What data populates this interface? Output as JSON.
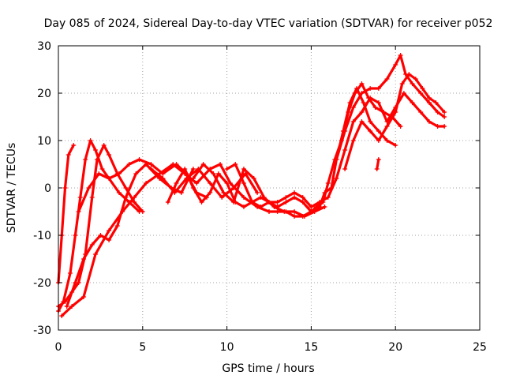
{
  "chart_data": {
    "type": "scatter",
    "title": "Day 085 of 2024, Sidereal Day-to-day VTEC variation (SDTVAR) for receiver p052",
    "xlabel": "GPS time / hours",
    "ylabel": "SDTVAR / TECUs",
    "xlim": [
      0,
      25
    ],
    "ylim": [
      -30,
      30
    ],
    "xticks": [
      "0",
      "5",
      "10",
      "15",
      "20",
      "25"
    ],
    "yticks": [
      "-30",
      "-20",
      "-10",
      "0",
      "10",
      "20",
      "30"
    ],
    "grid": true,
    "marker": "+",
    "color": "#ff0000",
    "series": [
      {
        "name": "s1",
        "x": [
          0,
          0.2,
          0.4,
          0.6,
          0.9
        ],
        "y": [
          -20,
          -10,
          0,
          7,
          9
        ]
      },
      {
        "name": "s2",
        "x": [
          0,
          0.3,
          0.7,
          1.0,
          1.3,
          1.6,
          1.9,
          2.2,
          2.6,
          3.0,
          3.6,
          4.2,
          4.8,
          5.5,
          6.2,
          7.0,
          7.6,
          8.2,
          8.8
        ],
        "y": [
          -26,
          -24,
          -18,
          -10,
          -2,
          6,
          10,
          8,
          4,
          2,
          3,
          5,
          6,
          5,
          3,
          5,
          3,
          -1,
          -2
        ]
      },
      {
        "name": "s3",
        "x": [
          0,
          0.4,
          0.8,
          1.2,
          1.6,
          2.0,
          2.3,
          2.7,
          3.0,
          3.5,
          4.0,
          4.5,
          5.0
        ],
        "y": [
          -25,
          -24,
          -22,
          -20,
          -14,
          -2,
          6,
          9,
          7,
          3,
          0,
          -3,
          -5
        ]
      },
      {
        "name": "s4",
        "x": [
          0.2,
          0.8,
          1.5,
          2.2,
          3.0,
          3.8,
          4.5,
          5.2,
          6.0,
          6.8,
          7.5,
          8.2,
          9.0,
          9.6,
          10.2,
          11.0,
          11.8,
          12.5
        ],
        "y": [
          -27,
          -25,
          -23,
          -14,
          -9,
          -5,
          -2,
          1,
          3,
          5,
          3,
          1,
          4,
          5,
          1,
          -2,
          -4,
          -5
        ]
      },
      {
        "name": "s5",
        "x": [
          0.5,
          1.0,
          1.5,
          2.0,
          2.5,
          3.0,
          3.5,
          4.0,
          4.6,
          5.2,
          6.0,
          6.7,
          7.3,
          8.0
        ],
        "y": [
          -25,
          -20,
          -15,
          -12,
          -10,
          -11,
          -8,
          -2,
          3,
          5,
          2,
          0,
          -1,
          4
        ]
      },
      {
        "name": "s6",
        "x": [
          6.5,
          7.0,
          7.5,
          8.0,
          8.5,
          9.0,
          9.5,
          10.0,
          10.5,
          11.0,
          11.5,
          12.0,
          12.5,
          13.0,
          13.5,
          14.0,
          14.5,
          15.0
        ],
        "y": [
          -3,
          1,
          4,
          0,
          -3,
          -1,
          3,
          1,
          -3,
          -4,
          -3,
          -2,
          -3,
          -4,
          -3,
          -2,
          -3,
          -5
        ]
      },
      {
        "name": "s7",
        "x": [
          8.0,
          8.6,
          9.2,
          9.8,
          10.4,
          11.0,
          11.6,
          12.2,
          12.8,
          13.4,
          14.0,
          14.6,
          15.2,
          15.8
        ],
        "y": [
          2,
          5,
          3,
          -1,
          -3,
          4,
          2,
          -2,
          -4,
          -5,
          -5,
          -6,
          -5,
          -4
        ]
      },
      {
        "name": "s8",
        "x": [
          10.0,
          10.5,
          11.0,
          11.5,
          12.0,
          12.5,
          13.0,
          13.5,
          14.0,
          14.5,
          15.0,
          15.5
        ],
        "y": [
          4,
          5,
          1,
          -3,
          -4,
          -3,
          -3,
          -2,
          -1,
          -2,
          -4,
          -3
        ]
      },
      {
        "name": "s9",
        "x": [
          12.5,
          13.0,
          13.5,
          14.0,
          14.5,
          15.0,
          15.5,
          15.8,
          16.2,
          16.5,
          16.9,
          17.3,
          17.7,
          18.1,
          18.5,
          19.0,
          19.5,
          20.0
        ],
        "y": [
          -5,
          -5,
          -5,
          -6,
          -6,
          -5,
          -4,
          -1,
          0,
          6,
          12,
          18,
          21,
          18,
          14,
          12,
          10,
          9
        ]
      },
      {
        "name": "s10",
        "x": [
          15.0,
          15.3,
          15.7,
          16.0,
          16.4,
          16.8,
          17.2,
          17.6,
          18.0,
          18.4,
          18.8,
          19.3,
          19.8,
          20.3
        ],
        "y": [
          -5,
          -4,
          -3,
          1,
          6,
          10,
          16,
          20,
          22,
          19,
          17,
          16,
          15,
          13
        ]
      },
      {
        "name": "s11",
        "x": [
          15.5,
          16.0,
          16.5,
          17.0,
          17.5,
          18.0,
          18.5,
          19.0,
          19.5,
          20.0,
          20.5,
          21.0,
          21.5,
          22.0,
          22.5,
          22.9
        ],
        "y": [
          -3,
          -2,
          2,
          8,
          14,
          16,
          19,
          18,
          14,
          17,
          20,
          18,
          16,
          14,
          13,
          13
        ]
      },
      {
        "name": "s12",
        "x": [
          16.5,
          17.0,
          17.5,
          18.0,
          18.5,
          19.0,
          19.5,
          20.0,
          20.3,
          20.6,
          21.0,
          21.5,
          22.0,
          22.5,
          22.9
        ],
        "y": [
          6,
          12,
          17,
          20,
          21,
          21,
          23,
          26,
          28,
          24,
          22,
          20,
          18,
          16,
          15
        ]
      },
      {
        "name": "s13",
        "x": [
          17.0,
          17.5,
          18.0,
          18.5,
          19.0,
          19.5,
          20.0,
          20.4,
          20.8,
          21.2,
          21.6,
          22.0,
          22.4,
          22.9
        ],
        "y": [
          4,
          10,
          14,
          12,
          10,
          13,
          16,
          22,
          24,
          23,
          21,
          19,
          18,
          16
        ]
      },
      {
        "name": "s14",
        "x": [
          18.9,
          19.0
        ],
        "y": [
          4,
          6
        ]
      },
      {
        "name": "s15",
        "x": [
          1.2,
          1.8,
          2.4,
          3.0,
          3.6,
          4.2,
          4.8
        ],
        "y": [
          -5,
          0,
          3,
          2,
          -1,
          -3,
          -5
        ]
      },
      {
        "name": "s16",
        "x": [
          5.5,
          6.2,
          6.9,
          7.6,
          8.3,
          9.0,
          9.7,
          10.4,
          11.1,
          11.8
        ],
        "y": [
          4,
          2,
          -1,
          2,
          4,
          1,
          -2,
          0,
          3,
          -1
        ]
      }
    ]
  }
}
